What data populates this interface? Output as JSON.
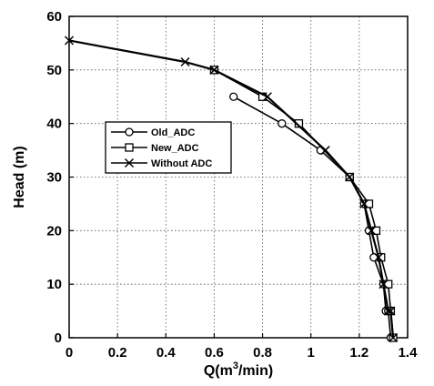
{
  "chart_data": {
    "type": "line",
    "xlabel_main": "Q(m",
    "xlabel_sup": "3",
    "xlabel_tail": "/min)",
    "ylabel": "Head (m)",
    "xlim": [
      0,
      1.4
    ],
    "ylim": [
      0,
      60
    ],
    "x_ticks": [
      0,
      0.2,
      0.4,
      0.6,
      0.8,
      1,
      1.2,
      1.4
    ],
    "x_tick_labels": [
      "0",
      "0.2",
      "0.4",
      "0.6",
      "0.8",
      "1",
      "1.2",
      "1.4"
    ],
    "y_ticks": [
      0,
      10,
      20,
      30,
      40,
      50,
      60
    ],
    "y_tick_labels": [
      "0",
      "10",
      "20",
      "30",
      "40",
      "50",
      "60"
    ],
    "grid": true,
    "grid_style": "dotted",
    "legend_position": "center-left",
    "series": [
      {
        "name": "Old_ADC",
        "marker": "circle",
        "x": [
          0.68,
          0.88,
          1.04,
          1.16,
          1.22,
          1.24,
          1.26,
          1.3,
          1.31,
          1.32,
          1.33
        ],
        "y": [
          45,
          40,
          35,
          30,
          25,
          20,
          15,
          10,
          5,
          5,
          0
        ]
      },
      {
        "name": "New_ADC",
        "marker": "square",
        "x": [
          0.6,
          0.8,
          0.95,
          1.16,
          1.24,
          1.27,
          1.29,
          1.32,
          1.33,
          1.34
        ],
        "y": [
          50,
          45,
          40,
          30,
          25,
          20,
          15,
          10,
          5,
          0
        ]
      },
      {
        "name": "Without ADC",
        "marker": "x",
        "x": [
          0,
          0.48,
          0.6,
          0.82,
          1.06,
          1.16,
          1.22,
          1.25,
          1.28,
          1.3,
          1.32,
          1.33,
          1.34
        ],
        "y": [
          55.5,
          51.5,
          50,
          45,
          35,
          30,
          25,
          20,
          15,
          10,
          5,
          5,
          0
        ]
      }
    ]
  }
}
